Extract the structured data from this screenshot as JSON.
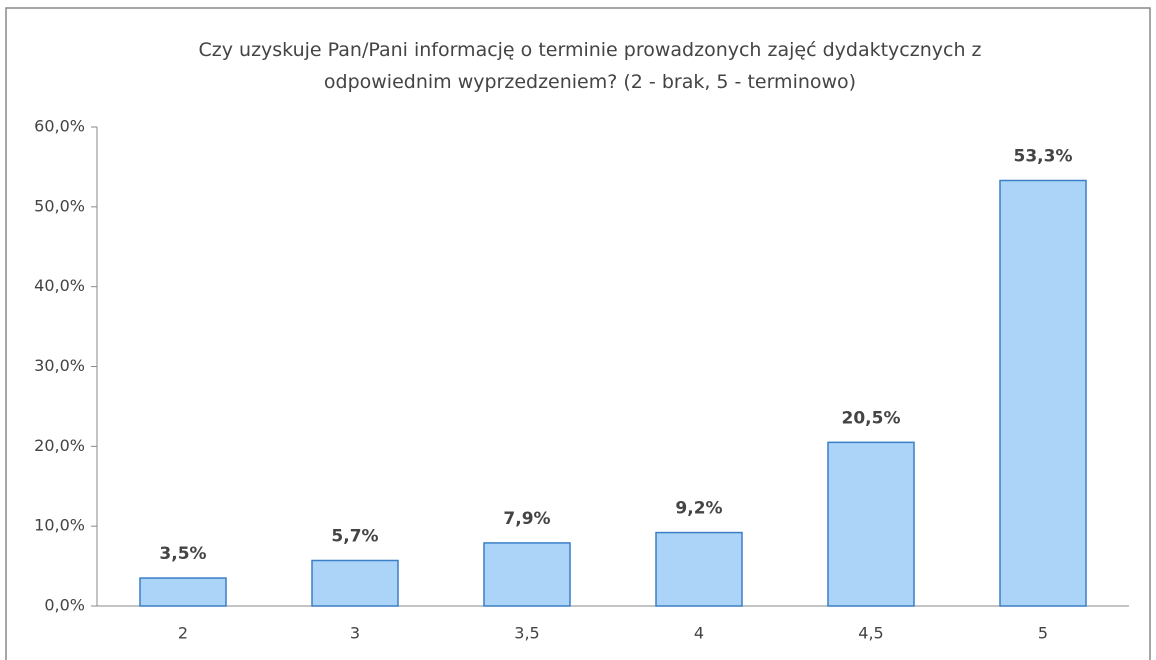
{
  "chart_data": {
    "type": "bar",
    "title": "Czy uzyskuje Pan/Pani informację o terminie prowadzonych zajęć dydaktycznych z odpowiednim wyprzedzeniem? (2 - brak, 5 - terminowo)",
    "categories": [
      "2",
      "3",
      "3,5",
      "4",
      "4,5",
      "5"
    ],
    "values": [
      3.5,
      5.7,
      7.9,
      9.2,
      20.5,
      53.3
    ],
    "value_labels": [
      "3,5%",
      "5,7%",
      "7,9%",
      "9,2%",
      "20,5%",
      "53,3%"
    ],
    "color": "#abd4f8",
    "ylim": [
      0,
      60
    ],
    "yticks": [
      {
        "value": 0,
        "label": "0,0%"
      },
      {
        "value": 10,
        "label": "10,0%"
      },
      {
        "value": 20,
        "label": "20,0%"
      },
      {
        "value": 30,
        "label": "30,0%"
      },
      {
        "value": 40,
        "label": "40,0%"
      },
      {
        "value": 50,
        "label": "50,0%"
      },
      {
        "value": 60,
        "label": "60,0%"
      }
    ],
    "grid": false
  }
}
